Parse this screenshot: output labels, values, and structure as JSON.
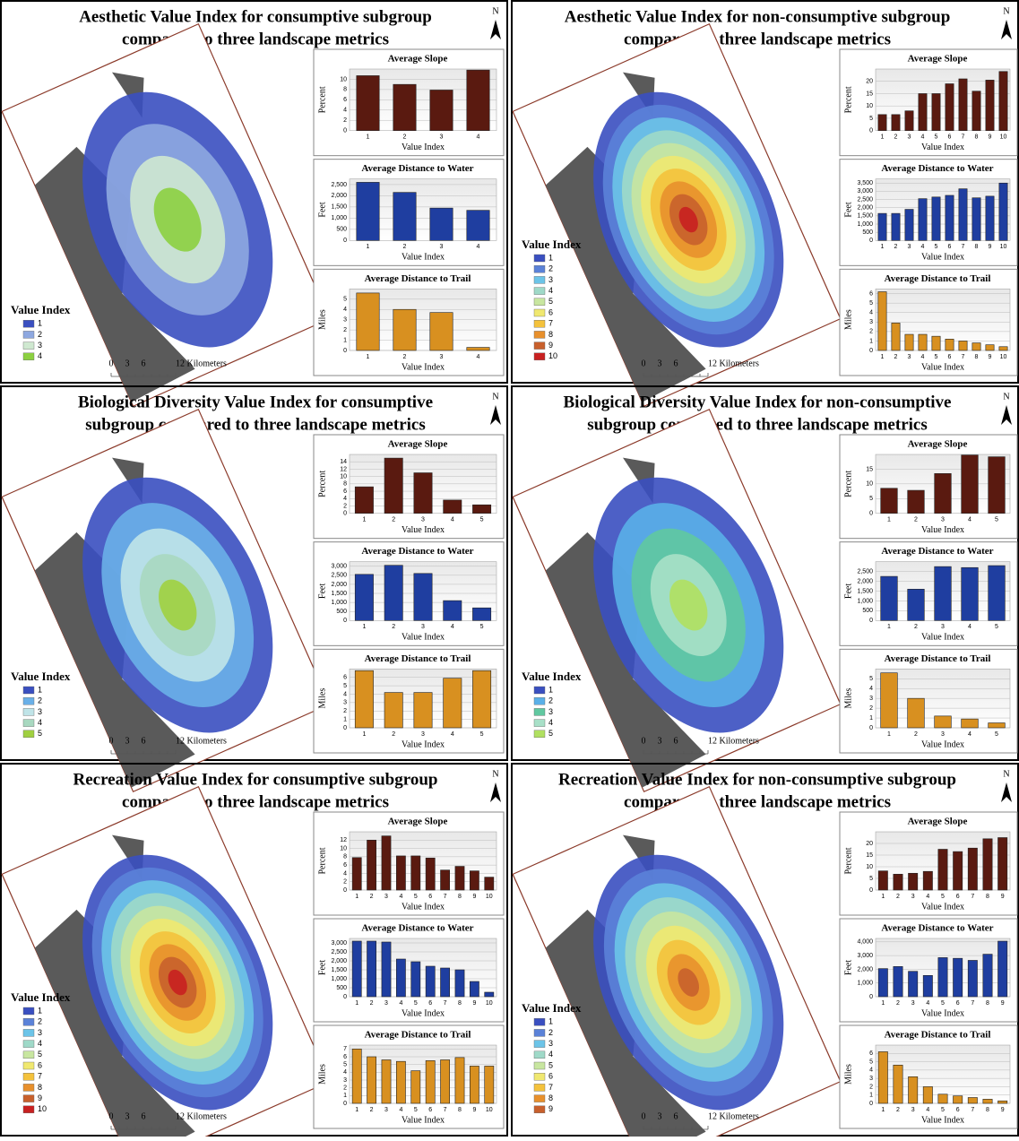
{
  "panels": [
    {
      "title_lines": [
        "Aesthetic Value Index for consumptive subgroup",
        "compared to three landscape metrics"
      ],
      "north": "N",
      "legend_title": "Value Index",
      "legend": [
        {
          "label": "1",
          "color": "#3a4fc0"
        },
        {
          "label": "2",
          "color": "#8ea8e0"
        },
        {
          "label": "3",
          "color": "#cfe8d0"
        },
        {
          "label": "4",
          "color": "#8cd040"
        }
      ],
      "scale_labels": [
        "0",
        "3",
        "6",
        "12 Kilometers"
      ]
    },
    {
      "title_lines": [
        "Aesthetic Value Index for non-consumptive subgroup",
        "compared to three landscape metrics"
      ],
      "north": "N",
      "legend_title": "Value Index",
      "legend": [
        {
          "label": "1",
          "color": "#3a4fc0"
        },
        {
          "label": "2",
          "color": "#5b82d8"
        },
        {
          "label": "3",
          "color": "#6cc4e8"
        },
        {
          "label": "4",
          "color": "#9fd9c8"
        },
        {
          "label": "5",
          "color": "#c8e6a0"
        },
        {
          "label": "6",
          "color": "#f0e870"
        },
        {
          "label": "7",
          "color": "#f4c23c"
        },
        {
          "label": "8",
          "color": "#e8902c"
        },
        {
          "label": "9",
          "color": "#c8602c"
        },
        {
          "label": "10",
          "color": "#c82020"
        }
      ],
      "scale_labels": [
        "0",
        "3",
        "6",
        "12 Kilometers"
      ]
    },
    {
      "title_lines": [
        "Biological Diversity Value Index for consumptive",
        "subgroup compared to three landscape metrics"
      ],
      "north": "N",
      "legend_title": "Value Index",
      "legend": [
        {
          "label": "1",
          "color": "#3a4fc0"
        },
        {
          "label": "2",
          "color": "#6ab0e8"
        },
        {
          "label": "3",
          "color": "#c0e4e8"
        },
        {
          "label": "4",
          "color": "#a8d8c0"
        },
        {
          "label": "5",
          "color": "#a0d040"
        }
      ],
      "scale_labels": [
        "0",
        "3",
        "6",
        "12 Kilometers"
      ]
    },
    {
      "title_lines": [
        "Biological Diversity Value Index for non-consumptive",
        "subgroup compared to three landscape metrics"
      ],
      "north": "N",
      "legend_title": "Value Index",
      "legend": [
        {
          "label": "1",
          "color": "#3a4fc0"
        },
        {
          "label": "2",
          "color": "#5ab0e8"
        },
        {
          "label": "3",
          "color": "#60c8a0"
        },
        {
          "label": "4",
          "color": "#a8e0c8"
        },
        {
          "label": "5",
          "color": "#b0e060"
        }
      ],
      "scale_labels": [
        "0",
        "3",
        "6",
        "12 Kilometers"
      ]
    },
    {
      "title_lines": [
        "Recreation Value Index for consumptive subgroup",
        "compared to three landscape metrics"
      ],
      "north": "N",
      "legend_title": "Value Index",
      "legend": [
        {
          "label": "1",
          "color": "#3a4fc0"
        },
        {
          "label": "2",
          "color": "#5b82d8"
        },
        {
          "label": "3",
          "color": "#6cc4e8"
        },
        {
          "label": "4",
          "color": "#9fd9c8"
        },
        {
          "label": "5",
          "color": "#c8e6a0"
        },
        {
          "label": "6",
          "color": "#f0e870"
        },
        {
          "label": "7",
          "color": "#f4c23c"
        },
        {
          "label": "8",
          "color": "#e8902c"
        },
        {
          "label": "9",
          "color": "#c8602c"
        },
        {
          "label": "10",
          "color": "#c82020"
        }
      ],
      "scale_labels": [
        "0",
        "3",
        "6",
        "12 Kilometers"
      ]
    },
    {
      "title_lines": [
        "Recreation Value Index for non-consumptive subgroup",
        "compared to three landscape metrics"
      ],
      "north": "N",
      "legend_title": "Value Index",
      "legend": [
        {
          "label": "1",
          "color": "#3a4fc0"
        },
        {
          "label": "2",
          "color": "#5b82d8"
        },
        {
          "label": "3",
          "color": "#6cc4e8"
        },
        {
          "label": "4",
          "color": "#9fd9c8"
        },
        {
          "label": "5",
          "color": "#c8e6a0"
        },
        {
          "label": "6",
          "color": "#f0e870"
        },
        {
          "label": "7",
          "color": "#f4c23c"
        },
        {
          "label": "8",
          "color": "#e8902c"
        },
        {
          "label": "9",
          "color": "#c8602c"
        }
      ],
      "scale_labels": [
        "0",
        "3",
        "6",
        "12 Kilometers"
      ]
    }
  ],
  "chart_data": [
    {
      "type": "bar",
      "title": "Average Slope",
      "xlabel": "Value Index",
      "ylabel": "Percent",
      "color": "#5a1a10",
      "categories": [
        "1",
        "2",
        "3",
        "4"
      ],
      "values": [
        10.7,
        9,
        7.9,
        11.8
      ],
      "ylim": [
        0,
        12
      ],
      "yticks": [
        0,
        2,
        4,
        6,
        8,
        10
      ]
    },
    {
      "type": "bar",
      "title": "Average Distance to Water",
      "xlabel": "Value Index",
      "ylabel": "Feet",
      "color": "#1f3ea0",
      "categories": [
        "1",
        "2",
        "3",
        "4"
      ],
      "values": [
        2600,
        2150,
        1450,
        1350
      ],
      "ylim": [
        0,
        2750
      ],
      "yticks": [
        0,
        500,
        {
          "value": 1000,
          "label": "1,000"
        },
        {
          "value": 1500,
          "label": "1,500"
        },
        {
          "value": 2000,
          "label": "2,000"
        },
        {
          "value": 2500,
          "label": "2,500"
        }
      ]
    },
    {
      "type": "bar",
      "title": "Average Distance to Trail",
      "xlabel": "Value Index",
      "ylabel": "Miles",
      "color": "#d89020",
      "categories": [
        "1",
        "2",
        "3",
        "4"
      ],
      "values": [
        5.6,
        4.0,
        3.7,
        0.3
      ],
      "ylim": [
        0,
        6
      ],
      "yticks": [
        0,
        1,
        2,
        3,
        4,
        5
      ]
    },
    {
      "type": "bar",
      "title": "Average Slope",
      "xlabel": "Value Index",
      "ylabel": "Percent",
      "color": "#5a1a10",
      "categories": [
        "1",
        "2",
        "3",
        "4",
        "5",
        "6",
        "7",
        "8",
        "9",
        "10"
      ],
      "values": [
        6.5,
        6.5,
        8,
        15,
        15,
        19,
        21,
        16,
        20.5,
        24
      ],
      "ylim": [
        0,
        25
      ],
      "yticks": [
        0,
        5,
        10,
        15,
        20
      ]
    },
    {
      "type": "bar",
      "title": "Average Distance to Water",
      "xlabel": "Value Index",
      "ylabel": "Feet",
      "color": "#1f3ea0",
      "categories": [
        "1",
        "2",
        "3",
        "4",
        "5",
        "6",
        "7",
        "8",
        "9",
        "10"
      ],
      "values": [
        1650,
        1650,
        1900,
        2550,
        2650,
        2750,
        3150,
        2600,
        2700,
        3500
      ],
      "ylim": [
        0,
        3750
      ],
      "yticks": [
        0,
        500,
        {
          "value": 1000,
          "label": "1,000"
        },
        {
          "value": 1500,
          "label": "1,500"
        },
        {
          "value": 2000,
          "label": "2,000"
        },
        {
          "value": 2500,
          "label": "2,500"
        },
        {
          "value": 3000,
          "label": "3,000"
        },
        {
          "value": 3500,
          "label": "3,500"
        }
      ]
    },
    {
      "type": "bar",
      "title": "Average Distance to Trail",
      "xlabel": "Value Index",
      "ylabel": "Miles",
      "color": "#d89020",
      "categories": [
        "1",
        "2",
        "3",
        "4",
        "5",
        "6",
        "7",
        "8",
        "9",
        "10"
      ],
      "values": [
        6.2,
        2.9,
        1.7,
        1.7,
        1.5,
        1.2,
        1.0,
        0.8,
        0.6,
        0.4
      ],
      "ylim": [
        0,
        6.5
      ],
      "yticks": [
        0,
        1,
        2,
        3,
        4,
        5,
        6
      ]
    },
    {
      "type": "bar",
      "title": "Average Slope",
      "xlabel": "Value Index",
      "ylabel": "Percent",
      "color": "#5a1a10",
      "categories": [
        "1",
        "2",
        "3",
        "4",
        "5"
      ],
      "values": [
        7.2,
        15,
        11,
        3.6,
        2.3
      ],
      "ylim": [
        0,
        16
      ],
      "yticks": [
        0,
        2,
        4,
        6,
        8,
        10,
        12,
        14
      ]
    },
    {
      "type": "bar",
      "title": "Average Distance to Water",
      "xlabel": "Value Index",
      "ylabel": "Feet",
      "color": "#1f3ea0",
      "categories": [
        "1",
        "2",
        "3",
        "4",
        "5"
      ],
      "values": [
        2550,
        3050,
        2600,
        1100,
        700
      ],
      "ylim": [
        0,
        3250
      ],
      "yticks": [
        0,
        500,
        {
          "value": 1000,
          "label": "1,000"
        },
        {
          "value": 1500,
          "label": "1,500"
        },
        {
          "value": 2000,
          "label": "2,000"
        },
        {
          "value": 2500,
          "label": "2,500"
        },
        {
          "value": 3000,
          "label": "3,000"
        }
      ]
    },
    {
      "type": "bar",
      "title": "Average Distance to Trail",
      "xlabel": "Value Index",
      "ylabel": "Miles",
      "color": "#d89020",
      "categories": [
        "1",
        "2",
        "3",
        "4",
        "5"
      ],
      "values": [
        6.8,
        4.2,
        4.2,
        5.9,
        6.8
      ],
      "ylim": [
        0,
        7
      ],
      "yticks": [
        0,
        1,
        2,
        3,
        4,
        5,
        6
      ]
    },
    {
      "type": "bar",
      "title": "Average Slope",
      "xlabel": "Value Index",
      "ylabel": "Percent",
      "color": "#5a1a10",
      "categories": [
        "1",
        "2",
        "3",
        "4",
        "5"
      ],
      "values": [
        8.5,
        7.8,
        13.5,
        19.8,
        19.2
      ],
      "ylim": [
        0,
        20
      ],
      "yticks": [
        0,
        5,
        10,
        15
      ]
    },
    {
      "type": "bar",
      "title": "Average Distance to Water",
      "xlabel": "Value Index",
      "ylabel": "Feet",
      "color": "#1f3ea0",
      "categories": [
        "1",
        "2",
        "3",
        "4",
        "5"
      ],
      "values": [
        2250,
        1600,
        2750,
        2700,
        2800
      ],
      "ylim": [
        0,
        3000
      ],
      "yticks": [
        0,
        500,
        {
          "value": 1000,
          "label": "1,000"
        },
        {
          "value": 1500,
          "label": "1,500"
        },
        {
          "value": 2000,
          "label": "2,000"
        },
        {
          "value": 2500,
          "label": "2,500"
        }
      ]
    },
    {
      "type": "bar",
      "title": "Average Distance to Trail",
      "xlabel": "Value Index",
      "ylabel": "Miles",
      "color": "#d89020",
      "categories": [
        "1",
        "2",
        "3",
        "4",
        "5"
      ],
      "values": [
        5.6,
        3.0,
        1.2,
        0.9,
        0.5
      ],
      "ylim": [
        0,
        6
      ],
      "yticks": [
        0,
        1,
        2,
        3,
        4,
        5
      ]
    },
    {
      "type": "bar",
      "title": "Average Slope",
      "xlabel": "Value Index",
      "ylabel": "Percent",
      "color": "#5a1a10",
      "categories": [
        "1",
        "2",
        "3",
        "4",
        "5",
        "6",
        "7",
        "8",
        "9",
        "10"
      ],
      "values": [
        7.8,
        12,
        13,
        8.2,
        8.2,
        7.7,
        4.8,
        5.7,
        4.6,
        3.1
      ],
      "ylim": [
        0,
        14
      ],
      "yticks": [
        0,
        2,
        4,
        6,
        8,
        10,
        12
      ]
    },
    {
      "type": "bar",
      "title": "Average Distance to Water",
      "xlabel": "Value Index",
      "ylabel": "Feet",
      "color": "#1f3ea0",
      "categories": [
        "1",
        "2",
        "3",
        "4",
        "5",
        "6",
        "7",
        "8",
        "9",
        "10"
      ],
      "values": [
        3100,
        3100,
        3050,
        2100,
        1950,
        1700,
        1600,
        1500,
        850,
        250
      ],
      "ylim": [
        0,
        3250
      ],
      "yticks": [
        0,
        500,
        {
          "value": 1000,
          "label": "1,000"
        },
        {
          "value": 1500,
          "label": "1,500"
        },
        {
          "value": 2000,
          "label": "2,000"
        },
        {
          "value": 2500,
          "label": "2,500"
        },
        {
          "value": 3000,
          "label": "3,000"
        }
      ]
    },
    {
      "type": "bar",
      "title": "Average Distance to Trail",
      "xlabel": "Value Index",
      "ylabel": "Miles",
      "color": "#d89020",
      "categories": [
        "1",
        "2",
        "3",
        "4",
        "5",
        "6",
        "7",
        "8",
        "9",
        "10"
      ],
      "values": [
        7.0,
        6.0,
        5.6,
        5.4,
        4.2,
        5.5,
        5.6,
        5.9,
        4.8,
        4.8
      ],
      "ylim": [
        0,
        7.5
      ],
      "yticks": [
        0,
        1,
        2,
        3,
        4,
        5,
        6,
        7
      ]
    },
    {
      "type": "bar",
      "title": "Average Slope",
      "xlabel": "Value Index",
      "ylabel": "Percent",
      "color": "#5a1a10",
      "categories": [
        "1",
        "2",
        "3",
        "4",
        "5",
        "6",
        "7",
        "8",
        "9"
      ],
      "values": [
        8.2,
        6.8,
        7.2,
        8,
        17.5,
        16.5,
        18,
        22,
        22.5
      ],
      "ylim": [
        0,
        25
      ],
      "yticks": [
        0,
        5,
        10,
        15,
        20
      ]
    },
    {
      "type": "bar",
      "title": "Average Distance to Water",
      "xlabel": "Value Index",
      "ylabel": "Feet",
      "color": "#1f3ea0",
      "categories": [
        "1",
        "2",
        "3",
        "4",
        "5",
        "6",
        "7",
        "8",
        "9"
      ],
      "values": [
        2050,
        2200,
        1850,
        1550,
        2850,
        2800,
        2650,
        3100,
        4050
      ],
      "ylim": [
        0,
        4250
      ],
      "yticks": [
        0,
        {
          "value": 1000,
          "label": "1,000"
        },
        {
          "value": 2000,
          "label": "2,000"
        },
        {
          "value": 3000,
          "label": "3,000"
        },
        {
          "value": 4000,
          "label": "4,000"
        }
      ]
    },
    {
      "type": "bar",
      "title": "Average Distance to Trail",
      "xlabel": "Value Index",
      "ylabel": "Miles",
      "color": "#d89020",
      "categories": [
        "1",
        "2",
        "3",
        "4",
        "5",
        "6",
        "7",
        "8",
        "9"
      ],
      "values": [
        6.2,
        4.6,
        3.2,
        2.0,
        1.1,
        0.9,
        0.7,
        0.5,
        0.3
      ],
      "ylim": [
        0,
        7
      ],
      "yticks": [
        0,
        1,
        2,
        3,
        4,
        5,
        6
      ]
    }
  ]
}
